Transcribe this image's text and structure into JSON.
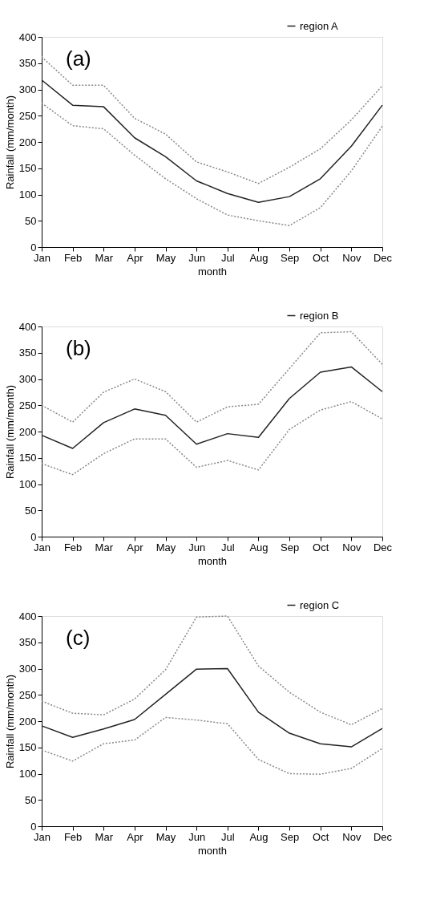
{
  "chart_data": [
    {
      "type": "line",
      "title": "(a)",
      "xlabel": "month",
      "ylabel": "Rainfall (mm/month)",
      "categories": [
        "Jan",
        "Feb",
        "Mar",
        "Apr",
        "May",
        "Jun",
        "Jul",
        "Aug",
        "Sep",
        "Oct",
        "Nov",
        "Dec"
      ],
      "ylim": [
        0,
        400
      ],
      "yticks": [
        0,
        50,
        100,
        150,
        200,
        250,
        300,
        350,
        400
      ],
      "grid": false,
      "legend": "top right",
      "marker": "none",
      "series": [
        {
          "color": "#888888",
          "line_style": "dotted",
          "values": [
            362,
            308,
            308,
            245,
            215,
            162,
            143,
            121,
            152,
            187,
            242,
            307
          ]
        },
        {
          "name": "region A",
          "color": "#222222",
          "line_style": "solid",
          "values": [
            318,
            270,
            267,
            208,
            172,
            126,
            102,
            85,
            96,
            130,
            192,
            270
          ]
        },
        {
          "color": "#888888",
          "line_style": "dotted",
          "values": [
            274,
            231,
            225,
            175,
            130,
            92,
            61,
            50,
            41,
            75,
            145,
            230
          ]
        }
      ]
    },
    {
      "type": "line",
      "title": "(b)",
      "xlabel": "month",
      "ylabel": "Rainfall (mm/month)",
      "categories": [
        "Jan",
        "Feb",
        "Mar",
        "Apr",
        "May",
        "Jun",
        "Jul",
        "Aug",
        "Sep",
        "Oct",
        "Nov",
        "Dec"
      ],
      "ylim": [
        0,
        400
      ],
      "yticks": [
        0,
        50,
        100,
        150,
        200,
        250,
        300,
        350,
        400
      ],
      "grid": false,
      "legend": "top right",
      "marker": "none",
      "series": [
        {
          "color": "#888888",
          "line_style": "dotted",
          "values": [
            250,
            218,
            275,
            300,
            276,
            218,
            247,
            252,
            320,
            388,
            390,
            328
          ]
        },
        {
          "name": "region B",
          "color": "#222222",
          "line_style": "solid",
          "values": [
            193,
            168,
            217,
            243,
            231,
            176,
            196,
            189,
            263,
            313,
            323,
            276
          ]
        },
        {
          "color": "#888888",
          "line_style": "dotted",
          "values": [
            139,
            118,
            158,
            186,
            186,
            132,
            145,
            127,
            204,
            241,
            257,
            224
          ]
        }
      ]
    },
    {
      "type": "line",
      "title": "(c)",
      "xlabel": "month",
      "ylabel": "Rainfall (mm/month)",
      "categories": [
        "Jan",
        "Feb",
        "Mar",
        "Apr",
        "May",
        "Jun",
        "Jul",
        "Aug",
        "Sep",
        "Oct",
        "Nov",
        "Dec"
      ],
      "ylim": [
        0,
        400
      ],
      "yticks": [
        0,
        50,
        100,
        150,
        200,
        250,
        300,
        350,
        400
      ],
      "grid": false,
      "legend": "top right",
      "marker": "none",
      "series": [
        {
          "color": "#888888",
          "line_style": "dotted",
          "values": [
            238,
            215,
            212,
            242,
            298,
            398,
            400,
            305,
            255,
            217,
            193,
            224
          ]
        },
        {
          "name": "region C",
          "color": "#222222",
          "line_style": "solid",
          "values": [
            191,
            169,
            185,
            203,
            251,
            299,
            300,
            217,
            177,
            157,
            151,
            186
          ]
        },
        {
          "color": "#888888",
          "line_style": "dotted",
          "values": [
            145,
            124,
            157,
            164,
            207,
            202,
            195,
            127,
            100,
            99,
            110,
            148
          ]
        }
      ]
    }
  ]
}
